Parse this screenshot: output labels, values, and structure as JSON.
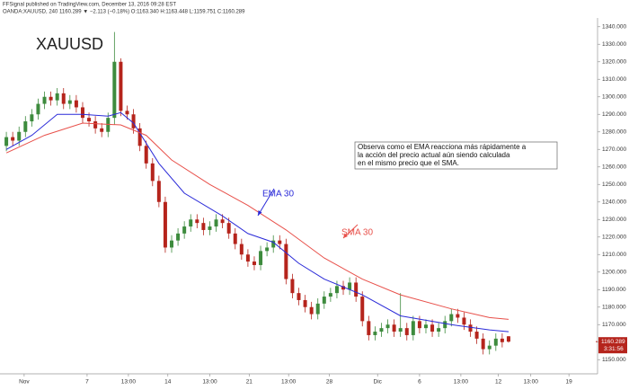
{
  "chart_data": {
    "type": "candlestick",
    "header": [
      "FFSignal published on TradingView.com, December 13, 2016 09:28 EST",
      "OANDA:XAUUSD, 240  1160.289 ▼ −2.113 (−0.18%) O:1163.340 H:1163.448 L:1159.751 C:1160.289"
    ],
    "title": "XAUUSD",
    "annotation": [
      "Observa como el EMA reacciona más rápidamente a",
      "la acción del precio actual aún siendo calculada",
      "en el mismo precio que el SMA."
    ],
    "last_price": {
      "value": 1160.289,
      "label": "1160.289"
    },
    "countdown": "3:31:56",
    "up_color": "#3d8b3d",
    "down_color": "#b5241c",
    "open": [
      1272,
      1277,
      1275,
      1280,
      1286,
      1290,
      1296,
      1300,
      1298,
      1302,
      1296,
      1298,
      1294,
      1288,
      1286,
      1282,
      1280,
      1288,
      1320,
      1292,
      1290,
      1282,
      1272,
      1262,
      1252,
      1240,
      1214,
      1218,
      1222,
      1226,
      1230,
      1228,
      1224,
      1226,
      1230,
      1228,
      1222,
      1216,
      1210,
      1206,
      1204,
      1212,
      1214,
      1218,
      1216,
      1196,
      1188,
      1184,
      1180,
      1176,
      1182,
      1186,
      1188,
      1192,
      1190,
      1194,
      1186,
      1172,
      1164,
      1166,
      1168,
      1170,
      1166,
      1168,
      1164,
      1172,
      1168,
      1170,
      1166,
      1168,
      1172,
      1176,
      1174,
      1170,
      1166,
      1162,
      1156,
      1158,
      1162,
      1163.34
    ],
    "high": [
      1280,
      1280,
      1283,
      1289,
      1293,
      1299,
      1303,
      1303,
      1305,
      1305,
      1301,
      1301,
      1297,
      1291,
      1289,
      1285,
      1291,
      1337,
      1322,
      1295,
      1293,
      1285,
      1275,
      1265,
      1255,
      1243,
      1221,
      1225,
      1229,
      1233,
      1233,
      1231,
      1229,
      1233,
      1233,
      1231,
      1225,
      1219,
      1213,
      1209,
      1215,
      1217,
      1221,
      1221,
      1219,
      1199,
      1191,
      1187,
      1183,
      1185,
      1189,
      1191,
      1195,
      1195,
      1197,
      1197,
      1189,
      1175,
      1169,
      1171,
      1173,
      1173,
      1188,
      1171,
      1175,
      1175,
      1173,
      1173,
      1171,
      1175,
      1179,
      1179,
      1177,
      1173,
      1169,
      1165,
      1161,
      1165,
      1165,
      1163.448
    ],
    "low": [
      1269,
      1272,
      1272,
      1277,
      1283,
      1287,
      1293,
      1295,
      1295,
      1293,
      1293,
      1291,
      1285,
      1283,
      1279,
      1277,
      1277,
      1284,
      1289,
      1287,
      1279,
      1269,
      1259,
      1249,
      1237,
      1211,
      1211,
      1215,
      1219,
      1223,
      1225,
      1221,
      1221,
      1223,
      1225,
      1219,
      1213,
      1207,
      1203,
      1201,
      1201,
      1209,
      1211,
      1213,
      1193,
      1185,
      1181,
      1177,
      1173,
      1173,
      1179,
      1183,
      1185,
      1187,
      1187,
      1183,
      1169,
      1161,
      1161,
      1163,
      1165,
      1163,
      1163,
      1161,
      1161,
      1165,
      1165,
      1163,
      1163,
      1165,
      1169,
      1171,
      1167,
      1163,
      1159,
      1153,
      1153,
      1155,
      1157,
      1159.751
    ],
    "close": [
      1277,
      1275,
      1280,
      1286,
      1290,
      1296,
      1300,
      1298,
      1302,
      1296,
      1298,
      1294,
      1288,
      1286,
      1282,
      1280,
      1288,
      1320,
      1292,
      1290,
      1282,
      1272,
      1262,
      1252,
      1240,
      1214,
      1218,
      1222,
      1226,
      1230,
      1228,
      1224,
      1226,
      1230,
      1228,
      1222,
      1216,
      1210,
      1206,
      1204,
      1212,
      1214,
      1218,
      1216,
      1196,
      1188,
      1184,
      1180,
      1176,
      1182,
      1186,
      1188,
      1192,
      1190,
      1194,
      1186,
      1172,
      1164,
      1166,
      1168,
      1170,
      1166,
      1168,
      1164,
      1172,
      1168,
      1170,
      1166,
      1168,
      1172,
      1176,
      1174,
      1170,
      1166,
      1162,
      1156,
      1158,
      1162,
      1160,
      1160.289
    ],
    "series": [
      {
        "name": "EMA 30",
        "color": "#2a2ad8",
        "x": [
          0,
          4,
          8,
          12,
          16,
          18,
          20,
          24,
          28,
          34,
          38,
          42,
          46,
          50,
          56,
          62,
          70,
          76,
          79
        ],
        "values": [
          1270,
          1278,
          1290,
          1290,
          1289,
          1291,
          1285,
          1262,
          1245,
          1232,
          1222,
          1217,
          1205,
          1196,
          1187,
          1175,
          1170,
          1167,
          1166
        ]
      },
      {
        "name": "SMA 30",
        "color": "#e8504a",
        "x": [
          0,
          6,
          12,
          18,
          22,
          26,
          32,
          38,
          44,
          50,
          56,
          62,
          70,
          76,
          79
        ],
        "values": [
          1268,
          1278,
          1285,
          1284,
          1278,
          1264,
          1250,
          1238,
          1224,
          1208,
          1196,
          1187,
          1179,
          1174,
          1173
        ]
      }
    ],
    "xlim": [
      -1,
      93
    ],
    "xticks": [
      {
        "value": 2.8,
        "label": "Nov"
      },
      {
        "value": 12.7,
        "label": "7"
      },
      {
        "value": 19.2,
        "label": "13:00"
      },
      {
        "value": 25.4,
        "label": "14"
      },
      {
        "value": 32,
        "label": "13:00"
      },
      {
        "value": 38.2,
        "label": "21"
      },
      {
        "value": 44.4,
        "label": "13:00"
      },
      {
        "value": 50.8,
        "label": "28"
      },
      {
        "value": 58.4,
        "label": "Dic"
      },
      {
        "value": 65,
        "label": "6"
      },
      {
        "value": 71.5,
        "label": "13:00"
      },
      {
        "value": 77.4,
        "label": "12"
      },
      {
        "value": 82.5,
        "label": "13:00"
      },
      {
        "value": 88.5,
        "label": "19"
      }
    ],
    "ylim": [
      1145,
      1345
    ],
    "yticks": [
      {
        "value": 1150,
        "label": "1150.000"
      },
      {
        "value": 1160,
        "label": "1160.000"
      },
      {
        "value": 1170,
        "label": "1170.000"
      },
      {
        "value": 1180,
        "label": "1180.000"
      },
      {
        "value": 1190,
        "label": "1190.000"
      },
      {
        "value": 1200,
        "label": "1200.000"
      },
      {
        "value": 1210,
        "label": "1210.000"
      },
      {
        "value": 1220,
        "label": "1220.000"
      },
      {
        "value": 1230,
        "label": "1230.000"
      },
      {
        "value": 1240,
        "label": "1240.000"
      },
      {
        "value": 1250,
        "label": "1250.000"
      },
      {
        "value": 1260,
        "label": "1260.000"
      },
      {
        "value": 1270,
        "label": "1270.000"
      },
      {
        "value": 1280,
        "label": "1280.000"
      },
      {
        "value": 1290,
        "label": "1290.000"
      },
      {
        "value": 1300,
        "label": "1300.000"
      },
      {
        "value": 1310,
        "label": "1310.000"
      },
      {
        "value": 1320,
        "label": "1320.000"
      },
      {
        "value": 1330,
        "label": "1330.000"
      },
      {
        "value": 1340,
        "label": "1340.000"
      }
    ]
  }
}
